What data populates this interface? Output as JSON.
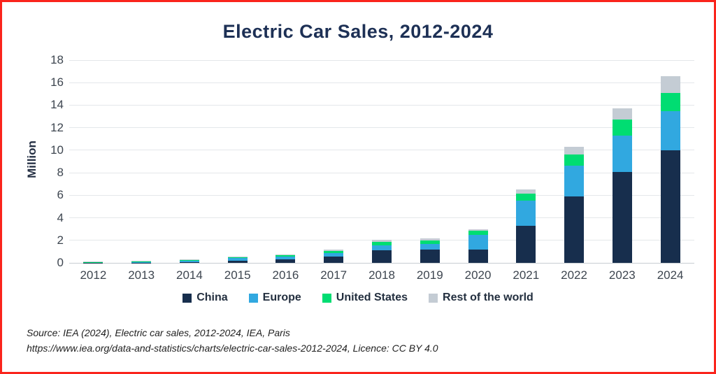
{
  "frame": {
    "border_color": "#fa241c",
    "background": "#ffffff"
  },
  "chart_data": {
    "type": "bar",
    "stacked": true,
    "title": "Electric Car Sales, 2012-2024",
    "xlabel": "",
    "ylabel": "Million",
    "categories": [
      "2012",
      "2013",
      "2014",
      "2015",
      "2016",
      "2017",
      "2018",
      "2019",
      "2020",
      "2021",
      "2022",
      "2023",
      "2024"
    ],
    "series": [
      {
        "name": "China",
        "color": "#172e4d",
        "values": [
          0.01,
          0.02,
          0.07,
          0.21,
          0.34,
          0.55,
          1.1,
          1.2,
          1.15,
          3.3,
          5.9,
          8.1,
          10.0
        ]
      },
      {
        "name": "Europe",
        "color": "#31a8e0",
        "values": [
          0.03,
          0.07,
          0.1,
          0.2,
          0.22,
          0.33,
          0.45,
          0.5,
          1.35,
          2.2,
          2.72,
          3.2,
          3.45
        ]
      },
      {
        "name": "United States",
        "color": "#00dd72",
        "values": [
          0.05,
          0.1,
          0.12,
          0.12,
          0.16,
          0.2,
          0.3,
          0.3,
          0.33,
          0.63,
          0.98,
          1.4,
          1.65
        ]
      },
      {
        "name": "Rest of the world",
        "color": "#c4ccd4",
        "values": [
          0.02,
          0.02,
          0.03,
          0.04,
          0.05,
          0.08,
          0.2,
          0.2,
          0.18,
          0.37,
          0.68,
          1.0,
          1.45
        ]
      }
    ],
    "totals": [
      0.11,
      0.21,
      0.32,
      0.57,
      0.77,
      1.16,
      2.05,
      2.2,
      3.01,
      6.5,
      10.28,
      13.7,
      16.55
    ],
    "ylim": [
      0,
      18
    ],
    "yticks": [
      0,
      2,
      4,
      6,
      8,
      10,
      12,
      14,
      16,
      18
    ],
    "grid": true,
    "legend_position": "bottom"
  },
  "source": {
    "line1": "Source: IEA (2024), Electric car sales, 2012-2024, IEA, Paris",
    "line2": "https://www.iea.org/data-and-statistics/charts/electric-car-sales-2012-2024, Licence: CC BY 4.0"
  }
}
